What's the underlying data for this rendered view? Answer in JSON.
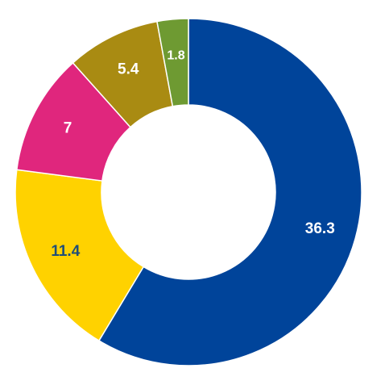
{
  "chart_data": {
    "type": "pie",
    "donut": true,
    "title": "",
    "start_angle_deg": 0,
    "direction": "clockwise",
    "slices": [
      {
        "label": "36.3",
        "value": 36.3,
        "color": "#00449A",
        "label_color": "#ffffff"
      },
      {
        "label": "11.4",
        "value": 11.4,
        "color": "#FFD200",
        "label_color": "#1F4E79"
      },
      {
        "label": "7",
        "value": 7,
        "color": "#E0267D",
        "label_color": "#ffffff"
      },
      {
        "label": "5.4",
        "value": 5.4,
        "color": "#A98B12",
        "label_color": "#ffffff"
      },
      {
        "label": "1.8",
        "value": 1.8,
        "color": "#6E9A32",
        "label_color": "#ffffff"
      }
    ]
  }
}
